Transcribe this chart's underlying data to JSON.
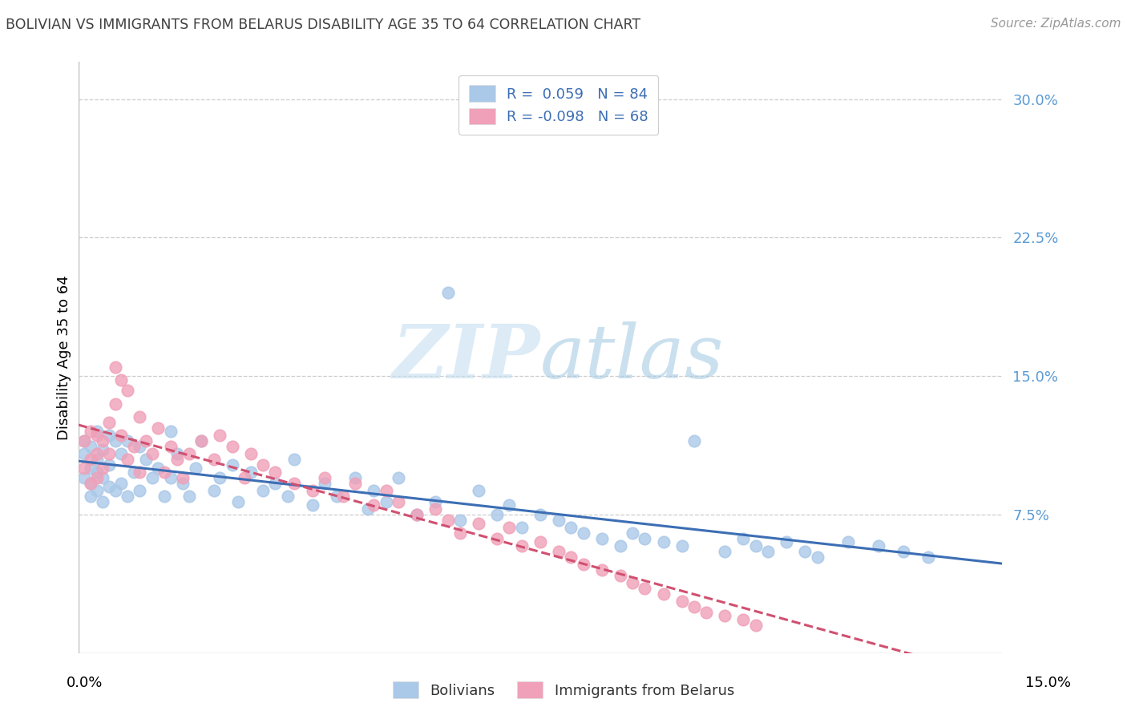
{
  "title": "BOLIVIAN VS IMMIGRANTS FROM BELARUS DISABILITY AGE 35 TO 64 CORRELATION CHART",
  "source": "Source: ZipAtlas.com",
  "ylabel": "Disability Age 35 to 64",
  "ytick_values": [
    0.075,
    0.15,
    0.225,
    0.3
  ],
  "xlim": [
    0.0,
    0.15
  ],
  "ylim": [
    0.0,
    0.32
  ],
  "blue_color": "#aac8e8",
  "pink_color": "#f0a0b8",
  "line_blue": "#3c6eb4",
  "line_pink": "#d05070",
  "watermark_color": "#c8e4f4",
  "grid_color": "#cccccc",
  "right_label_color": "#5b9bd5",
  "title_color": "#404040",
  "source_color": "#999999",
  "legend_label_color": "#3c6eb4",
  "boli_x": [
    0.001,
    0.001,
    0.001,
    0.002,
    0.002,
    0.002,
    0.002,
    0.003,
    0.003,
    0.003,
    0.003,
    0.004,
    0.004,
    0.004,
    0.005,
    0.005,
    0.005,
    0.006,
    0.006,
    0.007,
    0.007,
    0.008,
    0.008,
    0.009,
    0.01,
    0.01,
    0.011,
    0.012,
    0.013,
    0.014,
    0.015,
    0.015,
    0.016,
    0.017,
    0.018,
    0.019,
    0.02,
    0.022,
    0.023,
    0.025,
    0.026,
    0.028,
    0.03,
    0.032,
    0.034,
    0.035,
    0.038,
    0.04,
    0.042,
    0.045,
    0.047,
    0.048,
    0.05,
    0.052,
    0.055,
    0.058,
    0.06,
    0.062,
    0.065,
    0.068,
    0.07,
    0.072,
    0.075,
    0.078,
    0.08,
    0.082,
    0.085,
    0.088,
    0.09,
    0.092,
    0.095,
    0.098,
    0.1,
    0.105,
    0.108,
    0.11,
    0.112,
    0.115,
    0.118,
    0.12,
    0.125,
    0.13,
    0.134,
    0.138
  ],
  "boli_y": [
    0.115,
    0.108,
    0.095,
    0.112,
    0.1,
    0.092,
    0.085,
    0.12,
    0.105,
    0.098,
    0.088,
    0.11,
    0.095,
    0.082,
    0.118,
    0.102,
    0.09,
    0.115,
    0.088,
    0.108,
    0.092,
    0.115,
    0.085,
    0.098,
    0.112,
    0.088,
    0.105,
    0.095,
    0.1,
    0.085,
    0.12,
    0.095,
    0.108,
    0.092,
    0.085,
    0.1,
    0.115,
    0.088,
    0.095,
    0.102,
    0.082,
    0.098,
    0.088,
    0.092,
    0.085,
    0.105,
    0.08,
    0.092,
    0.085,
    0.095,
    0.078,
    0.088,
    0.082,
    0.095,
    0.075,
    0.082,
    0.195,
    0.072,
    0.088,
    0.075,
    0.08,
    0.068,
    0.075,
    0.072,
    0.068,
    0.065,
    0.062,
    0.058,
    0.065,
    0.062,
    0.06,
    0.058,
    0.115,
    0.055,
    0.062,
    0.058,
    0.055,
    0.06,
    0.055,
    0.052,
    0.06,
    0.058,
    0.055,
    0.052
  ],
  "bela_x": [
    0.001,
    0.001,
    0.002,
    0.002,
    0.002,
    0.003,
    0.003,
    0.003,
    0.004,
    0.004,
    0.005,
    0.005,
    0.006,
    0.006,
    0.007,
    0.007,
    0.008,
    0.008,
    0.009,
    0.01,
    0.01,
    0.011,
    0.012,
    0.013,
    0.014,
    0.015,
    0.016,
    0.017,
    0.018,
    0.02,
    0.022,
    0.023,
    0.025,
    0.027,
    0.028,
    0.03,
    0.032,
    0.035,
    0.038,
    0.04,
    0.043,
    0.045,
    0.048,
    0.05,
    0.052,
    0.055,
    0.058,
    0.06,
    0.062,
    0.065,
    0.068,
    0.07,
    0.072,
    0.075,
    0.078,
    0.08,
    0.082,
    0.085,
    0.088,
    0.09,
    0.092,
    0.095,
    0.098,
    0.1,
    0.102,
    0.105,
    0.108,
    0.11
  ],
  "bela_y": [
    0.115,
    0.1,
    0.12,
    0.105,
    0.092,
    0.118,
    0.108,
    0.095,
    0.115,
    0.1,
    0.125,
    0.108,
    0.155,
    0.135,
    0.148,
    0.118,
    0.142,
    0.105,
    0.112,
    0.128,
    0.098,
    0.115,
    0.108,
    0.122,
    0.098,
    0.112,
    0.105,
    0.095,
    0.108,
    0.115,
    0.105,
    0.118,
    0.112,
    0.095,
    0.108,
    0.102,
    0.098,
    0.092,
    0.088,
    0.095,
    0.085,
    0.092,
    0.08,
    0.088,
    0.082,
    0.075,
    0.078,
    0.072,
    0.065,
    0.07,
    0.062,
    0.068,
    0.058,
    0.06,
    0.055,
    0.052,
    0.048,
    0.045,
    0.042,
    0.038,
    0.035,
    0.032,
    0.028,
    0.025,
    0.022,
    0.02,
    0.018,
    0.015
  ]
}
